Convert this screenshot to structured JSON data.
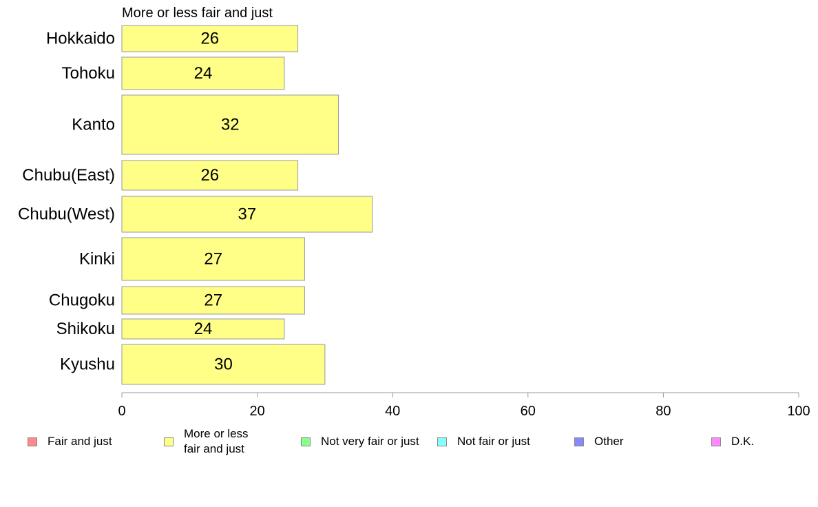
{
  "chart_data": {
    "type": "bar",
    "orientation": "horizontal",
    "title": "More or less fair and just",
    "categories": [
      "Hokkaido",
      "Tohoku",
      "Kanto",
      "Chubu(East)",
      "Chubu(West)",
      "Kinki",
      "Chugoku",
      "Shikoku",
      "Kyushu"
    ],
    "values": [
      26,
      24,
      32,
      26,
      37,
      27,
      27,
      24,
      30
    ],
    "value_labels": [
      "26",
      "24",
      "32",
      "26",
      "37",
      "27",
      "27",
      "24",
      "30"
    ],
    "bar_color": "#ffff88",
    "xlim": [
      0,
      100
    ],
    "xticks": [
      0,
      20,
      40,
      60,
      80,
      100
    ],
    "xtick_labels": [
      "0",
      "20",
      "40",
      "60",
      "80",
      "100"
    ],
    "grid": false,
    "legend": {
      "position": "bottom",
      "items": [
        {
          "label": "Fair and just",
          "color": "#ff8888"
        },
        {
          "label": "More or less\nfair and just",
          "color": "#ffff88"
        },
        {
          "label": "Not very fair or just",
          "color": "#88ff88"
        },
        {
          "label": "Not fair or just",
          "color": "#88ffff"
        },
        {
          "label": "Other",
          "color": "#8888ff"
        },
        {
          "label": "D.K.",
          "color": "#ff88ff"
        }
      ]
    }
  }
}
